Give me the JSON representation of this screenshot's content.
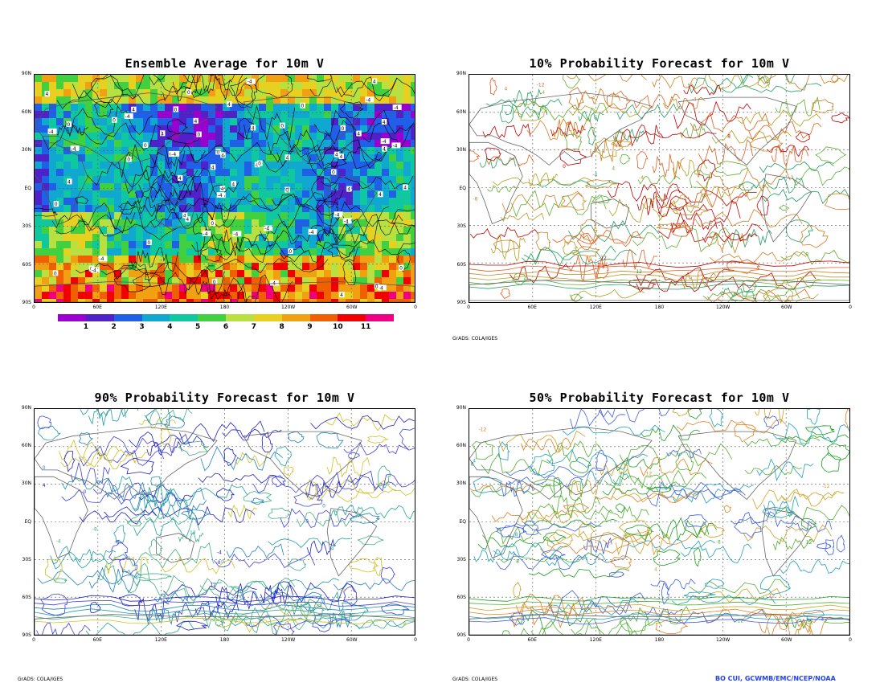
{
  "panels": [
    {
      "title": "Ensemble Average for 10m V",
      "fill": true
    },
    {
      "title": "10% Probability Forecast for 10m V",
      "fill": false,
      "palette": [
        "#c00000",
        "#e06020",
        "#d08020",
        "#b0a020",
        "#60b030",
        "#20a060"
      ]
    },
    {
      "title": "90% Probability Forecast for 10m V",
      "fill": false,
      "palette": [
        "#2020c0",
        "#4040e0",
        "#2080c0",
        "#20a0a0",
        "#40b080",
        "#d0c020"
      ]
    },
    {
      "title": "50% Probability Forecast for 10m V",
      "fill": false,
      "palette": [
        "#20a020",
        "#50b030",
        "#d0a020",
        "#e08020",
        "#20a0c0",
        "#4060e0"
      ]
    }
  ],
  "y_labels": [
    "90N",
    "60N",
    "30N",
    "EQ",
    "30S",
    "60S",
    "90S"
  ],
  "x_labels": [
    "0",
    "60E",
    "120E",
    "180",
    "120W",
    "60W",
    "0"
  ],
  "credits": {
    "grads": "GrADS: COLA/IGES",
    "noaa": "BO CUI, GCWMB/EMC/NCEP/NOAA"
  },
  "colorbar": {
    "colors": [
      "#9a00d0",
      "#5020c8",
      "#2060e8",
      "#10a8d0",
      "#10c8a0",
      "#40d040",
      "#b8e040",
      "#e8d020",
      "#f0a010",
      "#f06000",
      "#f00000",
      "#f00080"
    ],
    "labels": [
      "1",
      "2",
      "3",
      "4",
      "5",
      "6",
      "7",
      "8",
      "9",
      "10",
      "11"
    ]
  },
  "contour_labels": [
    "0",
    "4",
    "-4",
    "8",
    "-8",
    "12",
    "-12"
  ]
}
